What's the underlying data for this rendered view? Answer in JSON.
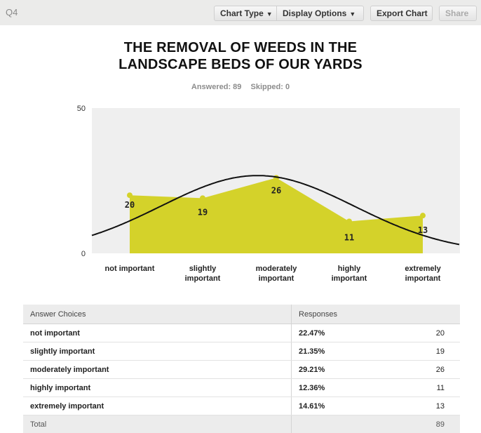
{
  "header": {
    "question_label": "Q4",
    "chart_type_label": "Chart Type",
    "display_options_label": "Display Options",
    "export_label": "Export Chart",
    "share_label": "Share"
  },
  "survey": {
    "title_line1": "THE REMOVAL OF WEEDS IN THE",
    "title_line2": "LANDSCAPE BEDS OF OUR YARDS",
    "answered": "Answered: 89",
    "skipped": "Skipped: 0"
  },
  "chart_data": {
    "type": "area",
    "categories": [
      [
        "not important"
      ],
      [
        "slightly",
        "important"
      ],
      [
        "moderately",
        "important"
      ],
      [
        "highly",
        "important"
      ],
      [
        "extremely",
        "important"
      ]
    ],
    "values": [
      20,
      19,
      26,
      11,
      13
    ],
    "data_labels": [
      "20",
      "19",
      "26",
      "11",
      "13"
    ],
    "ylim": [
      0,
      50
    ],
    "y_ticks": [
      "0",
      "50"
    ],
    "fill_color": "#d4d22a",
    "curve_color": "#111111",
    "plot_bg": "#efefef",
    "overlay": "normal-curve",
    "grid": false
  },
  "table": {
    "headers": [
      "Answer Choices",
      "Responses"
    ],
    "rows": [
      {
        "choice": "not important",
        "percent": "22.47%",
        "count": "20"
      },
      {
        "choice": "slightly important",
        "percent": "21.35%",
        "count": "19"
      },
      {
        "choice": "moderately important",
        "percent": "29.21%",
        "count": "26"
      },
      {
        "choice": "highly important",
        "percent": "12.36%",
        "count": "11"
      },
      {
        "choice": "extremely important",
        "percent": "14.61%",
        "count": "13"
      }
    ],
    "total_label": "Total",
    "total_value": "89"
  }
}
